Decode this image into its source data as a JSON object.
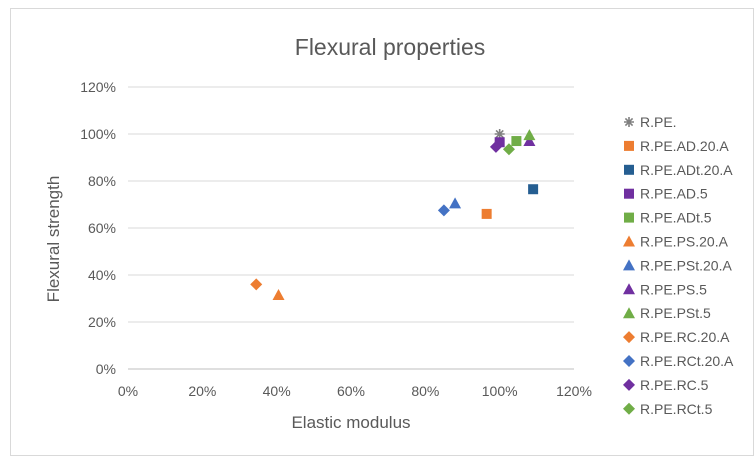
{
  "chart_data": {
    "type": "scatter",
    "title": "Flexural properties",
    "xlabel": "Elastic modulus",
    "ylabel": "Flexural strength",
    "xlim": [
      0,
      1.2
    ],
    "ylim": [
      0,
      1.2
    ],
    "xticks": [
      0,
      0.2,
      0.4,
      0.6,
      0.8,
      1.0,
      1.2
    ],
    "yticks": [
      0,
      0.2,
      0.4,
      0.6,
      0.8,
      1.0,
      1.2
    ],
    "xtick_labels": [
      "0%",
      "20%",
      "40%",
      "60%",
      "80%",
      "100%",
      "120%"
    ],
    "ytick_labels": [
      "0%",
      "20%",
      "40%",
      "60%",
      "80%",
      "100%",
      "120%"
    ],
    "grid": "horizontal",
    "legend_position": "right",
    "series": [
      {
        "name": "R.PE.",
        "marker": "star",
        "color": "#808080",
        "x": 1.0,
        "y": 1.0
      },
      {
        "name": "R.PE.AD.20.A",
        "marker": "square",
        "color": "#ed7d31",
        "x": 0.965,
        "y": 0.66
      },
      {
        "name": "R.PE.ADt.20.A",
        "marker": "square",
        "color": "#255e91",
        "x": 1.09,
        "y": 0.765
      },
      {
        "name": "R.PE.AD.5",
        "marker": "square",
        "color": "#7030a0",
        "x": 1.0,
        "y": 0.965
      },
      {
        "name": "R.PE.ADt.5",
        "marker": "square",
        "color": "#70ad47",
        "x": 1.045,
        "y": 0.97
      },
      {
        "name": "R.PE.PS.20.A",
        "marker": "triangle",
        "color": "#ed7d31",
        "x": 0.405,
        "y": 0.315
      },
      {
        "name": "R.PE.PSt.20.A",
        "marker": "triangle",
        "color": "#4472c4",
        "x": 0.88,
        "y": 0.705
      },
      {
        "name": "R.PE.PS.5",
        "marker": "triangle",
        "color": "#7030a0",
        "x": 1.08,
        "y": 0.97
      },
      {
        "name": "R.PE.PSt.5",
        "marker": "triangle",
        "color": "#70ad47",
        "x": 1.08,
        "y": 0.995
      },
      {
        "name": "R.PE.RC.20.A",
        "marker": "diamond",
        "color": "#ed7d31",
        "x": 0.345,
        "y": 0.36
      },
      {
        "name": "R.PE.RCt.20.A",
        "marker": "diamond",
        "color": "#4472c4",
        "x": 0.85,
        "y": 0.675
      },
      {
        "name": "R.PE.RC.5",
        "marker": "diamond",
        "color": "#7030a0",
        "x": 0.99,
        "y": 0.945
      },
      {
        "name": "R.PE.RCt.5",
        "marker": "diamond",
        "color": "#70ad47",
        "x": 1.025,
        "y": 0.935
      }
    ]
  }
}
